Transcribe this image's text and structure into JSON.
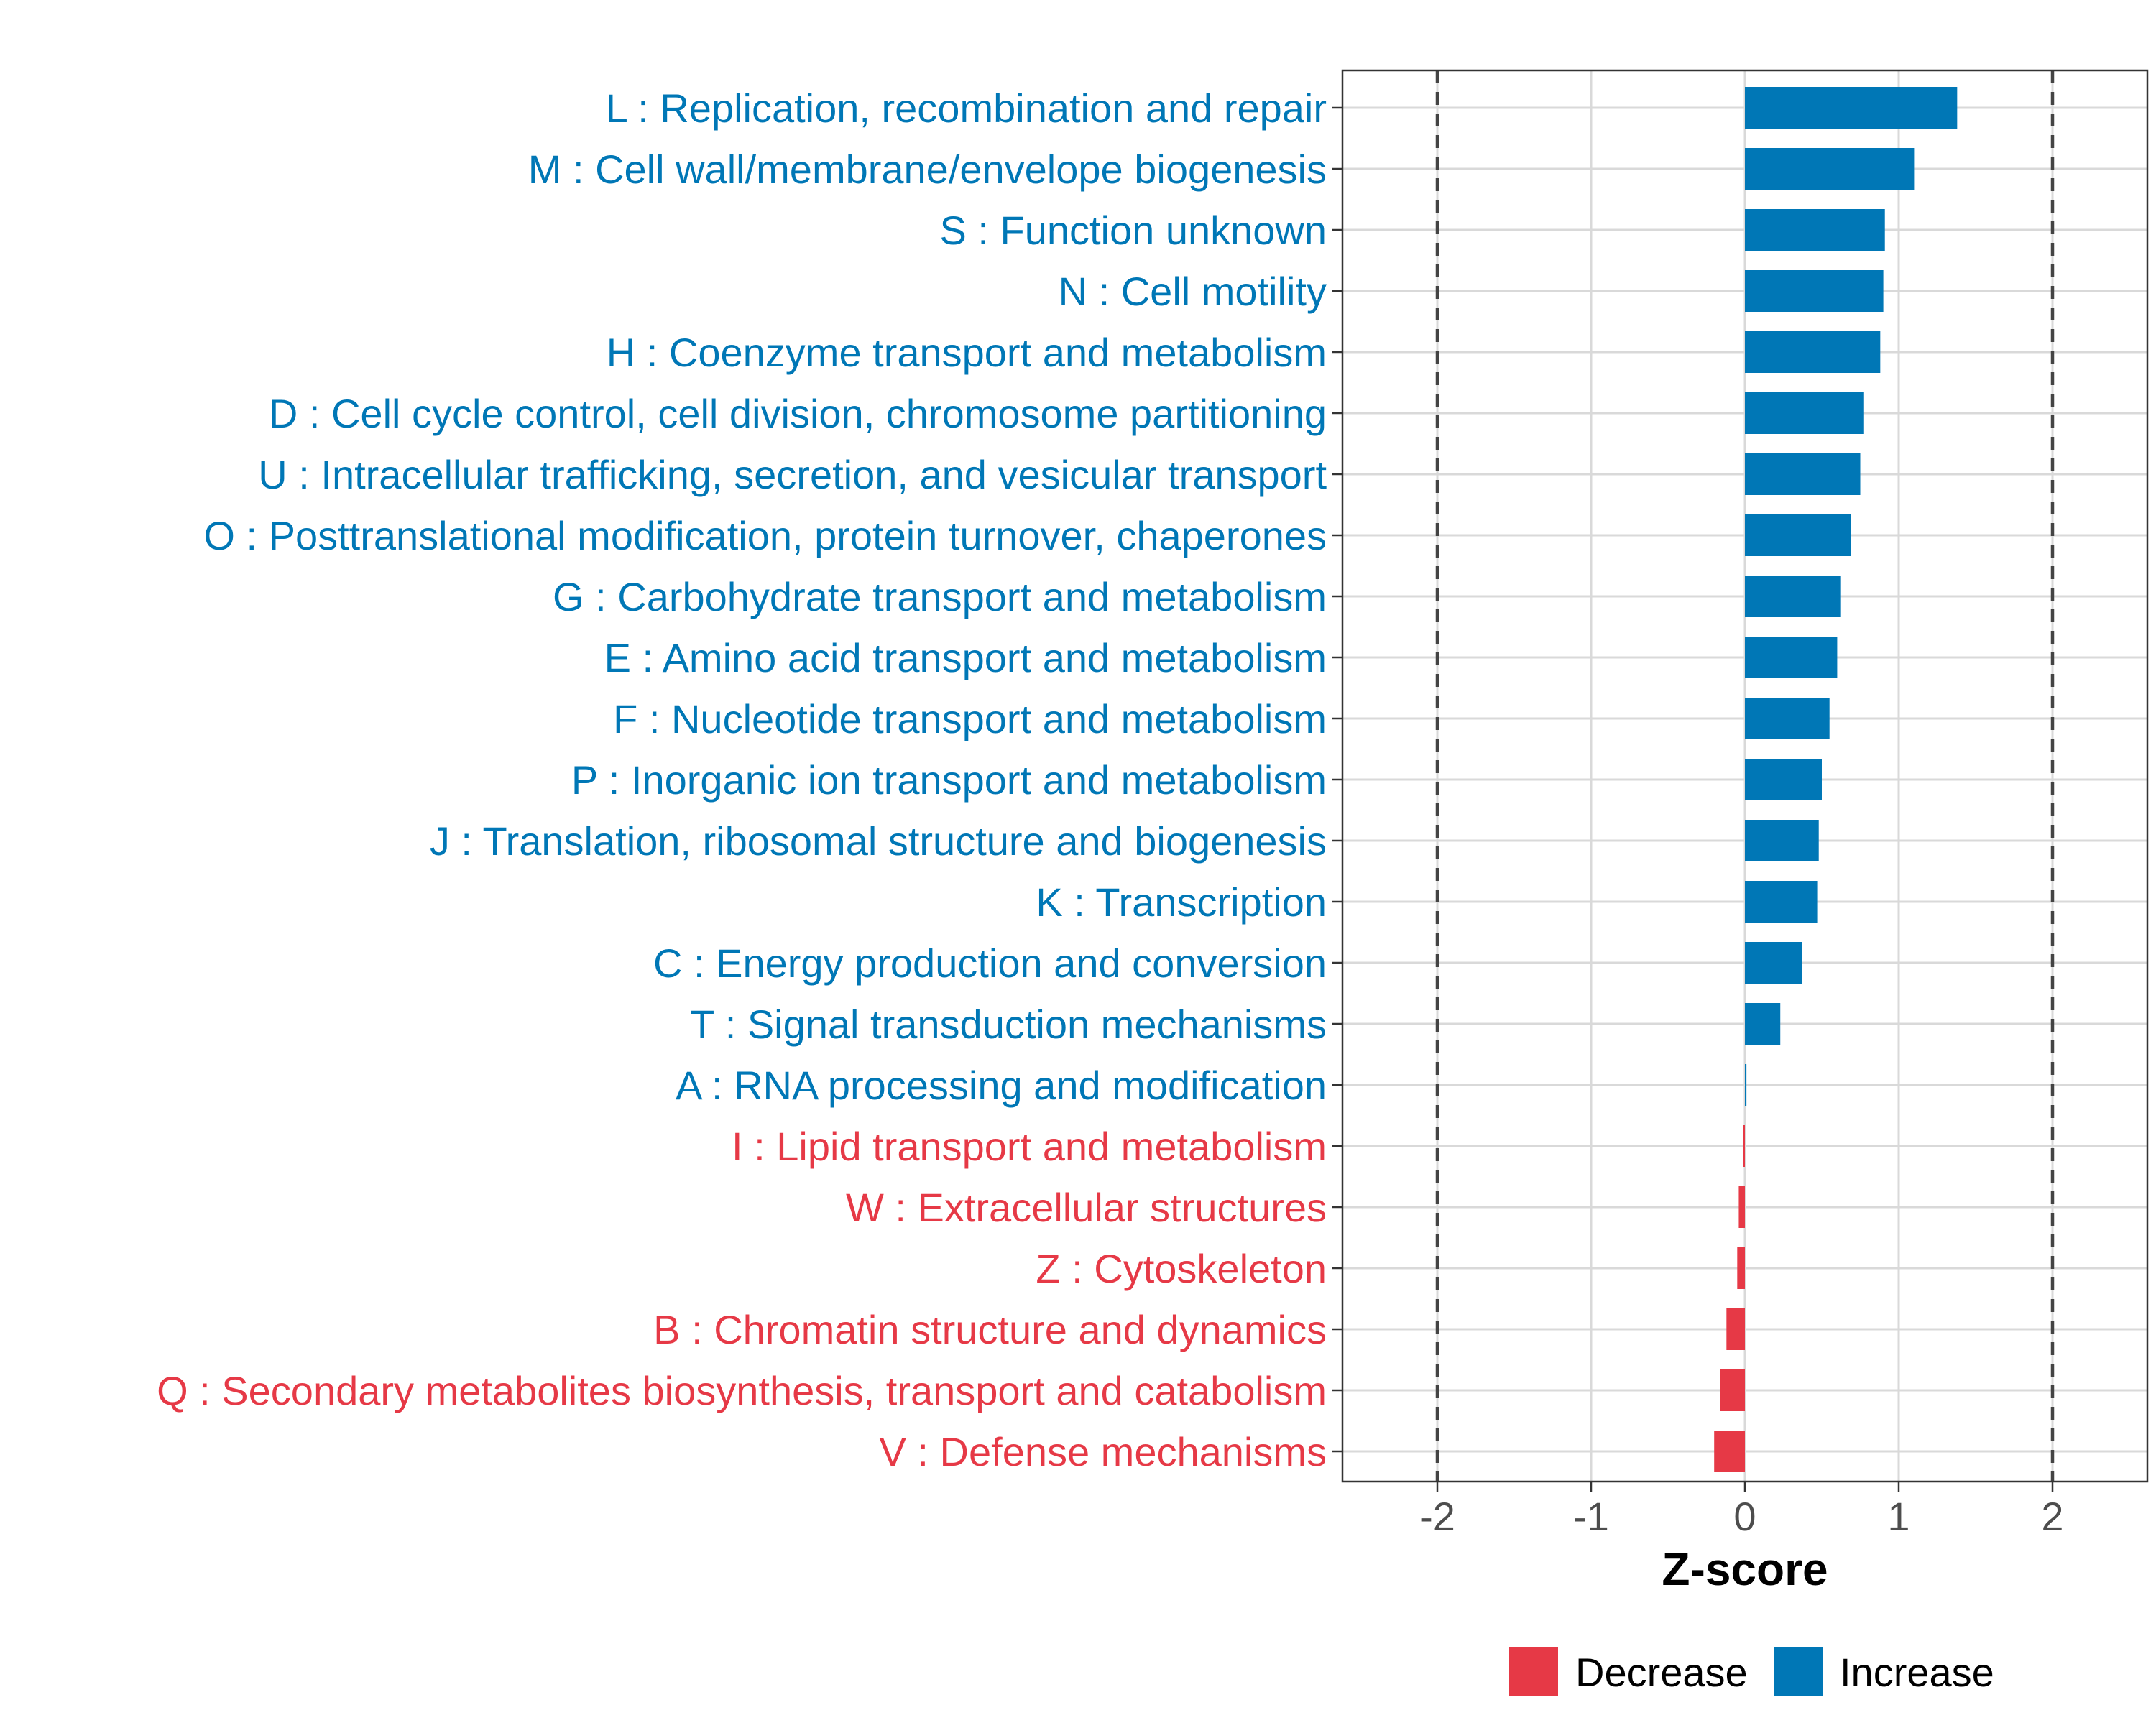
{
  "chart_data": {
    "type": "bar",
    "orientation": "horizontal",
    "title": "",
    "xlabel": "Z-score",
    "ylabel": "",
    "xlim": [
      -2.63,
      2.63
    ],
    "xticks": [
      -2,
      -1,
      0,
      1,
      2
    ],
    "xtick_labels": [
      "-2",
      "-1",
      "0",
      "1",
      "2"
    ],
    "reference_lines": [
      -2,
      2
    ],
    "grid": true,
    "colors": {
      "Increase": "#0077b6",
      "Decrease": "#e63946",
      "axis_text": "#4d4d4d",
      "grid": "#d9d9d9",
      "ref_line": "#444444"
    },
    "legend": {
      "position": "bottom",
      "entries": [
        "Decrease",
        "Increase"
      ]
    },
    "categories": [
      "L : Replication, recombination and repair",
      "M : Cell wall/membrane/envelope biogenesis",
      "S : Function unknown",
      "N : Cell motility",
      "H : Coenzyme transport and metabolism",
      "D : Cell cycle control, cell division, chromosome partitioning",
      "U : Intracellular trafficking, secretion, and vesicular transport",
      "O : Posttranslational modification, protein turnover, chaperones",
      "G : Carbohydrate transport and metabolism",
      "E : Amino acid transport and metabolism",
      "F : Nucleotide transport and metabolism",
      "P : Inorganic ion transport and metabolism",
      "J : Translation, ribosomal structure and biogenesis",
      "K : Transcription",
      "C : Energy production and conversion",
      "T : Signal transduction mechanisms",
      "A : RNA processing and modification",
      "I : Lipid transport and metabolism",
      "W : Extracellular structures",
      "Z : Cytoskeleton",
      "B : Chromatin structure and dynamics",
      "Q : Secondary metabolites biosynthesis, transport and catabolism",
      "V : Defense mechanisms"
    ],
    "values": [
      1.38,
      1.1,
      0.91,
      0.9,
      0.88,
      0.77,
      0.75,
      0.69,
      0.62,
      0.6,
      0.55,
      0.5,
      0.48,
      0.47,
      0.37,
      0.23,
      0.01,
      -0.01,
      -0.04,
      -0.05,
      -0.12,
      -0.16,
      -0.2
    ],
    "groups": [
      "Increase",
      "Increase",
      "Increase",
      "Increase",
      "Increase",
      "Increase",
      "Increase",
      "Increase",
      "Increase",
      "Increase",
      "Increase",
      "Increase",
      "Increase",
      "Increase",
      "Increase",
      "Increase",
      "Increase",
      "Decrease",
      "Decrease",
      "Decrease",
      "Decrease",
      "Decrease",
      "Decrease"
    ]
  }
}
